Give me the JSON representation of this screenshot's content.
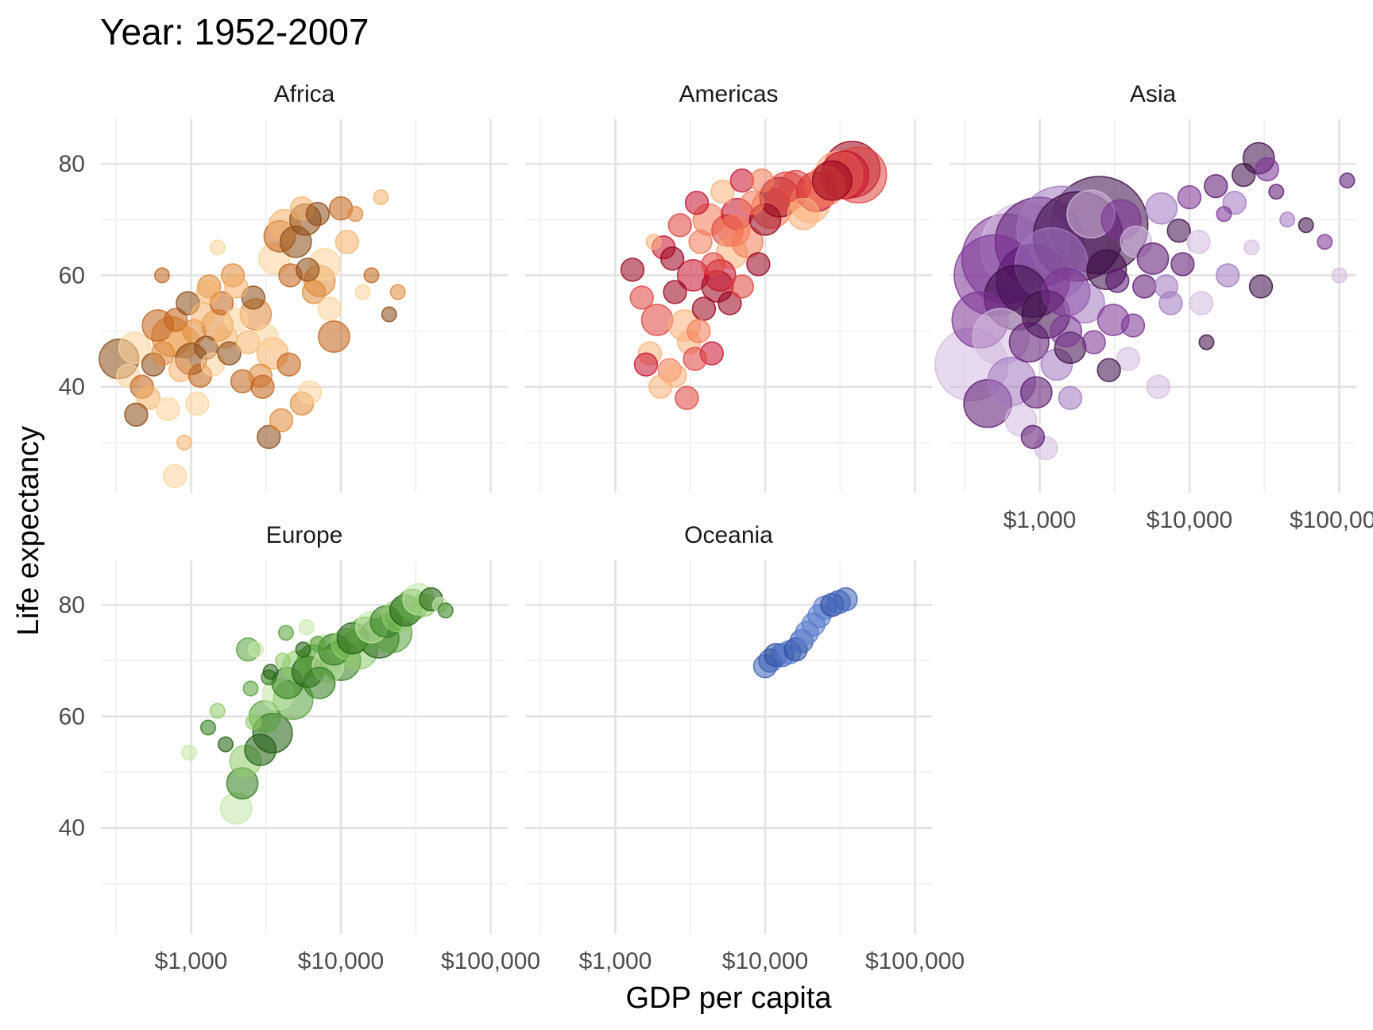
{
  "chart_data": {
    "type": "scatter",
    "title": "Year: 1952-2007",
    "xlabel": "GDP per capita",
    "ylabel": "Life expectancy",
    "x_scale": "log10",
    "xlim": [
      250,
      130000
    ],
    "ylim": [
      21,
      88
    ],
    "x_ticks": [
      1000,
      10000,
      100000
    ],
    "x_tick_labels": [
      "$1,000",
      "$10,000",
      "$100,000"
    ],
    "y_ticks": [
      40,
      60,
      80
    ],
    "y_tick_labels": [
      "40",
      "60",
      "80"
    ],
    "grid": true,
    "legend": "none",
    "size_encoding": "population",
    "color_encoding": "country",
    "panels": [
      {
        "name": "Africa",
        "colors": [
          "#8c4a14",
          "#c3631a",
          "#e08a3a",
          "#f5b36b",
          "#fbd49a"
        ],
        "points": [
          [
            330,
            45,
            4
          ],
          [
            380,
            42,
            2
          ],
          [
            420,
            47,
            3
          ],
          [
            470,
            40,
            2
          ],
          [
            520,
            38,
            2
          ],
          [
            560,
            44,
            2
          ],
          [
            600,
            51,
            3
          ],
          [
            650,
            46,
            2
          ],
          [
            700,
            36,
            2
          ],
          [
            740,
            49,
            4
          ],
          [
            790,
            52,
            2
          ],
          [
            850,
            43,
            2
          ],
          [
            900,
            48,
            3
          ],
          [
            950,
            55,
            2
          ],
          [
            1000,
            45,
            3
          ],
          [
            1050,
            50,
            2
          ],
          [
            1100,
            37,
            2
          ],
          [
            1150,
            42,
            2
          ],
          [
            1200,
            53,
            2
          ],
          [
            1260,
            47,
            2
          ],
          [
            1320,
            58,
            2
          ],
          [
            1400,
            44,
            2
          ],
          [
            1500,
            51,
            3
          ],
          [
            1600,
            55,
            2
          ],
          [
            1700,
            49,
            2
          ],
          [
            1800,
            46,
            2
          ],
          [
            1900,
            60,
            2
          ],
          [
            2000,
            52,
            2
          ],
          [
            2200,
            41,
            2
          ],
          [
            2400,
            48,
            2
          ],
          [
            2600,
            56,
            2
          ],
          [
            2900,
            42,
            2
          ],
          [
            3200,
            49,
            2
          ],
          [
            3600,
            63,
            3
          ],
          [
            3900,
            67,
            3
          ],
          [
            4200,
            69,
            3
          ],
          [
            4600,
            60,
            2
          ],
          [
            5000,
            66,
            3
          ],
          [
            5500,
            72,
            2
          ],
          [
            6000,
            61,
            2
          ],
          [
            6600,
            57,
            2
          ],
          [
            7200,
            59,
            3
          ],
          [
            7800,
            62,
            3
          ],
          [
            8400,
            54,
            2
          ],
          [
            9000,
            49,
            3
          ],
          [
            10000,
            72,
            2
          ],
          [
            11000,
            66,
            2
          ],
          [
            12500,
            71,
            1
          ],
          [
            14000,
            57,
            1
          ],
          [
            16000,
            60,
            1
          ],
          [
            18500,
            74,
            1
          ],
          [
            21000,
            53,
            1
          ],
          [
            24000,
            57,
            1
          ],
          [
            3300,
            31,
            2
          ],
          [
            5500,
            37,
            2
          ],
          [
            780,
            24,
            2
          ],
          [
            4500,
            44,
            2
          ],
          [
            2000,
            58,
            2
          ],
          [
            1500,
            65,
            1
          ],
          [
            640,
            60,
            1
          ],
          [
            3500,
            46,
            3
          ],
          [
            7000,
            71,
            2
          ],
          [
            5800,
            70,
            3
          ],
          [
            4000,
            34,
            2
          ],
          [
            6200,
            39,
            2
          ],
          [
            3000,
            40,
            2
          ],
          [
            1300,
            57,
            2
          ],
          [
            900,
            30,
            1
          ],
          [
            430,
            35,
            2
          ],
          [
            2700,
            53,
            3
          ]
        ]
      },
      {
        "name": "Americas",
        "colors": [
          "#99001a",
          "#c8102e",
          "#e0443f",
          "#f47a55",
          "#fbb07a"
        ],
        "points": [
          [
            1300,
            61,
            2
          ],
          [
            1500,
            56,
            2
          ],
          [
            1700,
            46,
            2
          ],
          [
            1900,
            52,
            3
          ],
          [
            2100,
            65,
            2
          ],
          [
            2300,
            43,
            2
          ],
          [
            2500,
            57,
            2
          ],
          [
            2700,
            69,
            2
          ],
          [
            2900,
            51,
            3
          ],
          [
            3100,
            48,
            2
          ],
          [
            3300,
            60,
            3
          ],
          [
            3500,
            73,
            2
          ],
          [
            3700,
            66,
            2
          ],
          [
            3900,
            54,
            2
          ],
          [
            4200,
            70,
            3
          ],
          [
            4500,
            62,
            2
          ],
          [
            4800,
            58,
            3
          ],
          [
            5200,
            75,
            2
          ],
          [
            5600,
            68,
            3
          ],
          [
            6000,
            64,
            3
          ],
          [
            6500,
            71,
            3
          ],
          [
            7000,
            77,
            2
          ],
          [
            7600,
            66,
            3
          ],
          [
            8200,
            73,
            2
          ],
          [
            9000,
            62,
            2
          ],
          [
            10000,
            70,
            3
          ],
          [
            11000,
            72,
            4
          ],
          [
            12500,
            74,
            4
          ],
          [
            14000,
            75,
            4
          ],
          [
            16000,
            76,
            3
          ],
          [
            18000,
            71,
            3
          ],
          [
            20000,
            73,
            4
          ],
          [
            22000,
            75,
            4
          ],
          [
            25000,
            76,
            4
          ],
          [
            28000,
            77,
            4
          ],
          [
            31000,
            78,
            5
          ],
          [
            34000,
            78,
            5
          ],
          [
            38000,
            79,
            6
          ],
          [
            42000,
            78,
            6
          ],
          [
            3000,
            38,
            2
          ],
          [
            2500,
            42,
            2
          ],
          [
            4400,
            46,
            2
          ],
          [
            3600,
            50,
            2
          ],
          [
            5800,
            55,
            2
          ],
          [
            7000,
            58,
            2
          ],
          [
            2000,
            40,
            2
          ],
          [
            1600,
            44,
            2
          ],
          [
            1800,
            66,
            1
          ],
          [
            9500,
            77,
            2
          ],
          [
            5000,
            60,
            3
          ],
          [
            6200,
            68,
            3
          ],
          [
            2400,
            63,
            2
          ],
          [
            3400,
            45,
            2
          ]
        ]
      },
      {
        "name": "Asia",
        "colors": [
          "#3b0a45",
          "#5a1470",
          "#7b3294",
          "#a279bf",
          "#d3bce0"
        ],
        "points": [
          [
            350,
            44,
            8
          ],
          [
            400,
            52,
            6
          ],
          [
            450,
            37,
            5
          ],
          [
            500,
            60,
            9
          ],
          [
            550,
            49,
            6
          ],
          [
            600,
            63,
            10
          ],
          [
            650,
            41,
            5
          ],
          [
            700,
            56,
            7
          ],
          [
            750,
            34,
            3
          ],
          [
            800,
            65,
            10
          ],
          [
            850,
            48,
            4
          ],
          [
            900,
            59,
            8
          ],
          [
            950,
            39,
            3
          ],
          [
            1000,
            66,
            10
          ],
          [
            1100,
            53,
            5
          ],
          [
            1200,
            62,
            8
          ],
          [
            1300,
            44,
            3
          ],
          [
            1400,
            68,
            10
          ],
          [
            1500,
            57,
            5
          ],
          [
            1600,
            47,
            3
          ],
          [
            1800,
            67,
            10
          ],
          [
            2000,
            55,
            4
          ],
          [
            2200,
            71,
            5
          ],
          [
            2500,
            69,
            11
          ],
          [
            2800,
            61,
            4
          ],
          [
            3100,
            52,
            3
          ],
          [
            3500,
            70,
            4
          ],
          [
            3900,
            45,
            2
          ],
          [
            4400,
            66,
            3
          ],
          [
            5000,
            58,
            2
          ],
          [
            5700,
            63,
            3
          ],
          [
            6500,
            72,
            3
          ],
          [
            7500,
            55,
            2
          ],
          [
            8500,
            68,
            2
          ],
          [
            10000,
            74,
            2
          ],
          [
            11500,
            66,
            2
          ],
          [
            13000,
            48,
            1
          ],
          [
            15000,
            76,
            2
          ],
          [
            17000,
            71,
            1
          ],
          [
            20000,
            73,
            2
          ],
          [
            23000,
            78,
            2
          ],
          [
            26000,
            65,
            1
          ],
          [
            29000,
            81,
            3
          ],
          [
            33000,
            79,
            2
          ],
          [
            38000,
            75,
            1
          ],
          [
            45000,
            70,
            1
          ],
          [
            60000,
            69,
            1
          ],
          [
            80000,
            66,
            1
          ],
          [
            100000,
            60,
            1
          ],
          [
            113000,
            77,
            1
          ],
          [
            1100,
            29,
            2
          ],
          [
            900,
            31,
            2
          ],
          [
            1600,
            38,
            2
          ],
          [
            2900,
            43,
            2
          ],
          [
            4200,
            51,
            2
          ],
          [
            6200,
            40,
            2
          ],
          [
            9000,
            62,
            2
          ],
          [
            18000,
            60,
            2
          ],
          [
            30000,
            58,
            2
          ],
          [
            1500,
            50,
            3
          ],
          [
            2300,
            48,
            2
          ],
          [
            12000,
            55,
            2
          ],
          [
            3300,
            59,
            2
          ],
          [
            7000,
            58,
            2
          ]
        ]
      },
      {
        "name": "Europe",
        "colors": [
          "#1e5e0f",
          "#2f7d1b",
          "#55a33a",
          "#8fcc6a",
          "#c4e8a7"
        ],
        "points": [
          [
            970,
            53.5,
            1
          ],
          [
            1300,
            58,
            1
          ],
          [
            1500,
            61,
            1
          ],
          [
            1700,
            55,
            1
          ],
          [
            2000,
            43.5,
            3
          ],
          [
            2200,
            48,
            3
          ],
          [
            2300,
            52,
            3
          ],
          [
            2500,
            65,
            1
          ],
          [
            2700,
            72,
            1
          ],
          [
            2900,
            54,
            3
          ],
          [
            3100,
            60,
            3
          ],
          [
            3300,
            67,
            1
          ],
          [
            3500,
            57,
            4
          ],
          [
            3800,
            64,
            3
          ],
          [
            4100,
            70,
            1
          ],
          [
            4400,
            66,
            3
          ],
          [
            4800,
            63,
            4
          ],
          [
            5200,
            69,
            3
          ],
          [
            5600,
            72,
            1
          ],
          [
            6000,
            68,
            3
          ],
          [
            6500,
            70,
            3
          ],
          [
            7000,
            73,
            1
          ],
          [
            7600,
            71,
            4
          ],
          [
            8200,
            69,
            3
          ],
          [
            9000,
            72,
            3
          ],
          [
            10000,
            70,
            4
          ],
          [
            11000,
            73,
            3
          ],
          [
            12000,
            74,
            3
          ],
          [
            13000,
            72,
            4
          ],
          [
            14500,
            75,
            3
          ],
          [
            16000,
            76,
            3
          ],
          [
            18000,
            74,
            4
          ],
          [
            20000,
            77,
            3
          ],
          [
            22000,
            75,
            4
          ],
          [
            24000,
            78,
            3
          ],
          [
            27000,
            79,
            3
          ],
          [
            30000,
            80,
            3
          ],
          [
            33000,
            81,
            3
          ],
          [
            36000,
            80,
            2
          ],
          [
            40000,
            81,
            2
          ],
          [
            46000,
            80,
            1
          ],
          [
            50000,
            79,
            1
          ],
          [
            2600,
            59,
            1
          ],
          [
            3400,
            68,
            1
          ],
          [
            4300,
            75,
            1
          ],
          [
            5900,
            76,
            1
          ],
          [
            2400,
            72,
            2
          ],
          [
            7200,
            66,
            3
          ]
        ]
      },
      {
        "name": "Oceania",
        "colors": [
          "#2b4ea3",
          "#3d63b8",
          "#5a7ccc"
        ],
        "points": [
          [
            10000,
            69,
            2
          ],
          [
            10800,
            70,
            2
          ],
          [
            11800,
            71,
            2
          ],
          [
            13000,
            71,
            2
          ],
          [
            14500,
            71.5,
            2
          ],
          [
            16000,
            72,
            2
          ],
          [
            17500,
            73.5,
            2
          ],
          [
            19000,
            75,
            2
          ],
          [
            21000,
            76.5,
            2
          ],
          [
            23000,
            78,
            2
          ],
          [
            25000,
            79.5,
            2
          ],
          [
            28000,
            80,
            2
          ],
          [
            31000,
            80.5,
            2
          ],
          [
            34500,
            81,
            2
          ]
        ]
      }
    ]
  }
}
